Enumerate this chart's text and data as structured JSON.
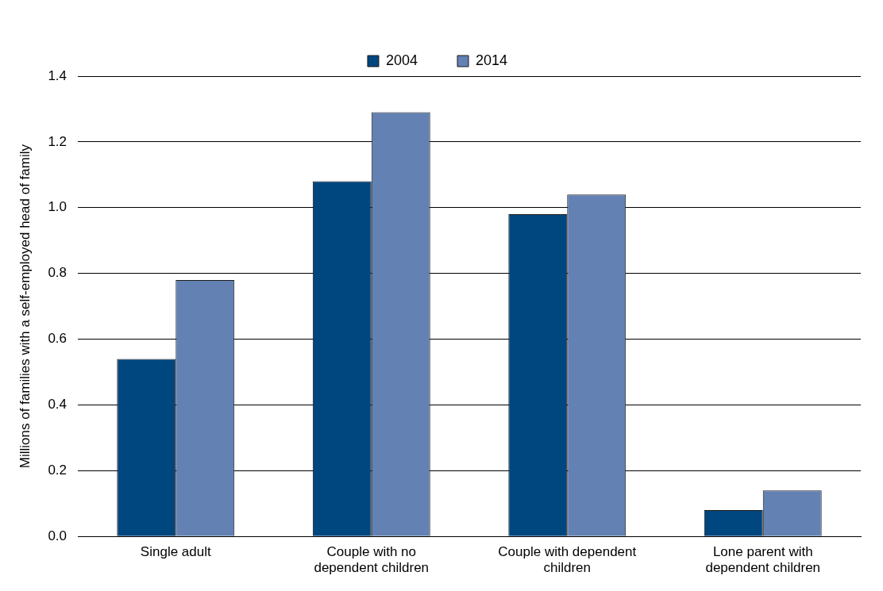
{
  "chart_data": {
    "type": "bar",
    "ylabel": "Millions of families with a self-employed head of family",
    "categories": [
      "Single adult",
      "Couple with no dependent children",
      "Couple with dependent children",
      "Lone parent with dependent children"
    ],
    "series": [
      {
        "name": "2004",
        "color": "#00467f",
        "values": [
          0.54,
          1.08,
          0.98,
          0.08
        ]
      },
      {
        "name": "2014",
        "color": "#6381b3",
        "values": [
          0.78,
          1.29,
          1.04,
          0.14
        ]
      }
    ],
    "ylim": [
      0,
      1.4
    ],
    "yticks": [
      {
        "value": 0,
        "label": "0.0"
      },
      {
        "value": 0.2,
        "label": "0.2"
      },
      {
        "value": 0.4,
        "label": "0.4"
      },
      {
        "value": 0.6,
        "label": "0.6"
      },
      {
        "value": 0.8,
        "label": "0.8"
      },
      {
        "value": 1,
        "label": "1.0"
      },
      {
        "value": 1.2,
        "label": "1.2"
      },
      {
        "value": 1.4,
        "label": "1.4"
      }
    ],
    "grid": "y",
    "legend": "top"
  }
}
